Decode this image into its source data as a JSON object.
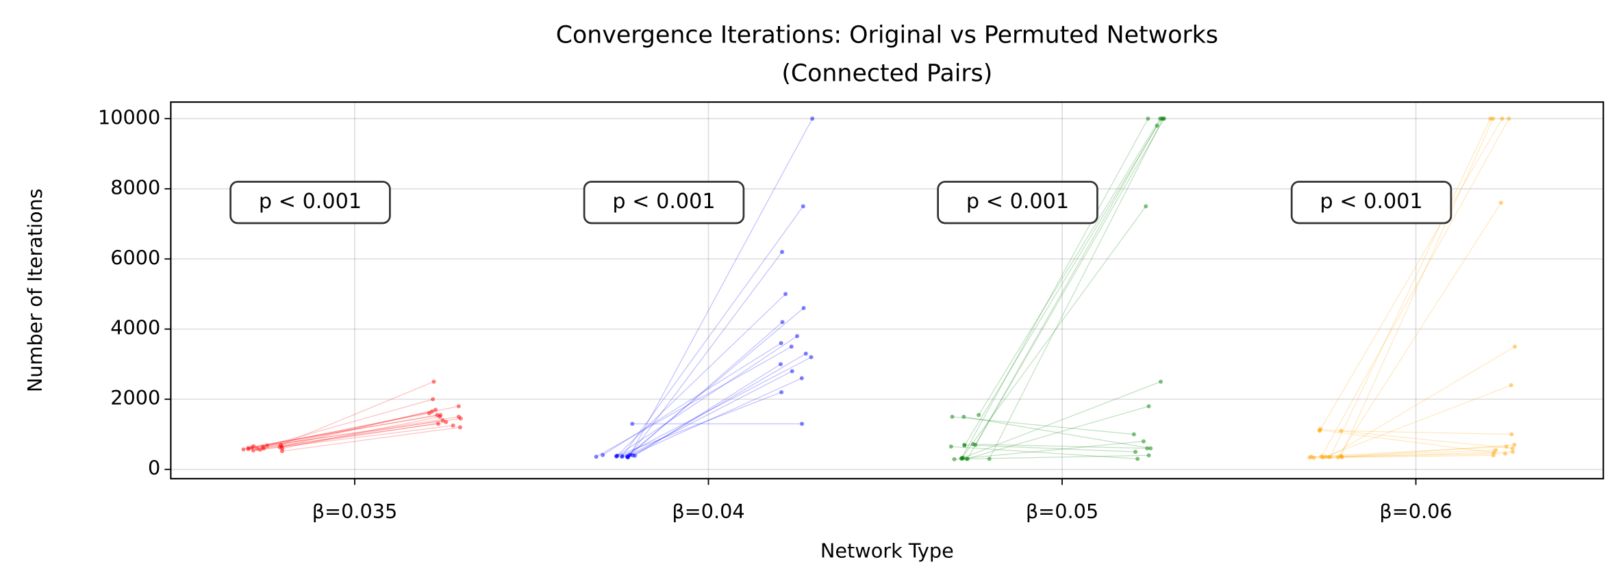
{
  "chart_data": {
    "type": "slope",
    "title": [
      "Convergence Iterations: Original vs Permuted Networks",
      "(Connected Pairs)"
    ],
    "x_label": "Network Type",
    "y_label": "Number of Iterations",
    "categories": [
      "β=0.035",
      "β=0.04",
      "β=0.05",
      "β=0.06"
    ],
    "ylim": [
      -265,
      10472
    ],
    "yticks": [
      0,
      2000,
      4000,
      6000,
      8000,
      10000
    ],
    "grid": true,
    "series": [
      {
        "color": "#ff0000",
        "annotation": "p < 0.001",
        "original": [
          560,
          620,
          590,
          650,
          600,
          540,
          680,
          610,
          570,
          630,
          700,
          520,
          600,
          640,
          580,
          660
        ],
        "permuted": [
          1400,
          1550,
          1300,
          1700,
          1500,
          1250,
          1800,
          1450,
          1600,
          1350,
          2500,
          1200,
          1650,
          2000,
          1500,
          1550
        ]
      },
      {
        "color": "#0000ff",
        "annotation": "p < 0.001",
        "original": [
          380,
          360,
          400,
          350,
          390,
          420,
          370,
          360,
          380,
          400,
          340,
          390,
          410,
          370,
          360,
          1300
        ],
        "permuted": [
          3200,
          3500,
          2800,
          4200,
          3000,
          10000,
          3800,
          2600,
          5000,
          3300,
          6200,
          2200,
          3600,
          4600,
          7500,
          1300
        ]
      },
      {
        "color": "#008000",
        "annotation": "p < 0.001",
        "original": [
          300,
          320,
          700,
          1500,
          300,
          650,
          1550,
          310,
          720,
          330,
          290,
          1500,
          680,
          300,
          310,
          700
        ],
        "permuted": [
          10000,
          10000,
          500,
          1000,
          10000,
          300,
          10000,
          800,
          600,
          2500,
          400,
          600,
          10000,
          1800,
          7500,
          9800
        ]
      },
      {
        "color": "#ffa500",
        "annotation": "p < 0.001",
        "original": [
          350,
          1100,
          360,
          340,
          1150,
          380,
          350,
          330,
          1100,
          360,
          340,
          370,
          1120,
          350,
          360,
          340
        ],
        "permuted": [
          10000,
          10000,
          450,
          500,
          600,
          10000,
          700,
          400,
          1000,
          2400,
          550,
          10000,
          480,
          3500,
          650,
          7600
        ]
      }
    ]
  }
}
